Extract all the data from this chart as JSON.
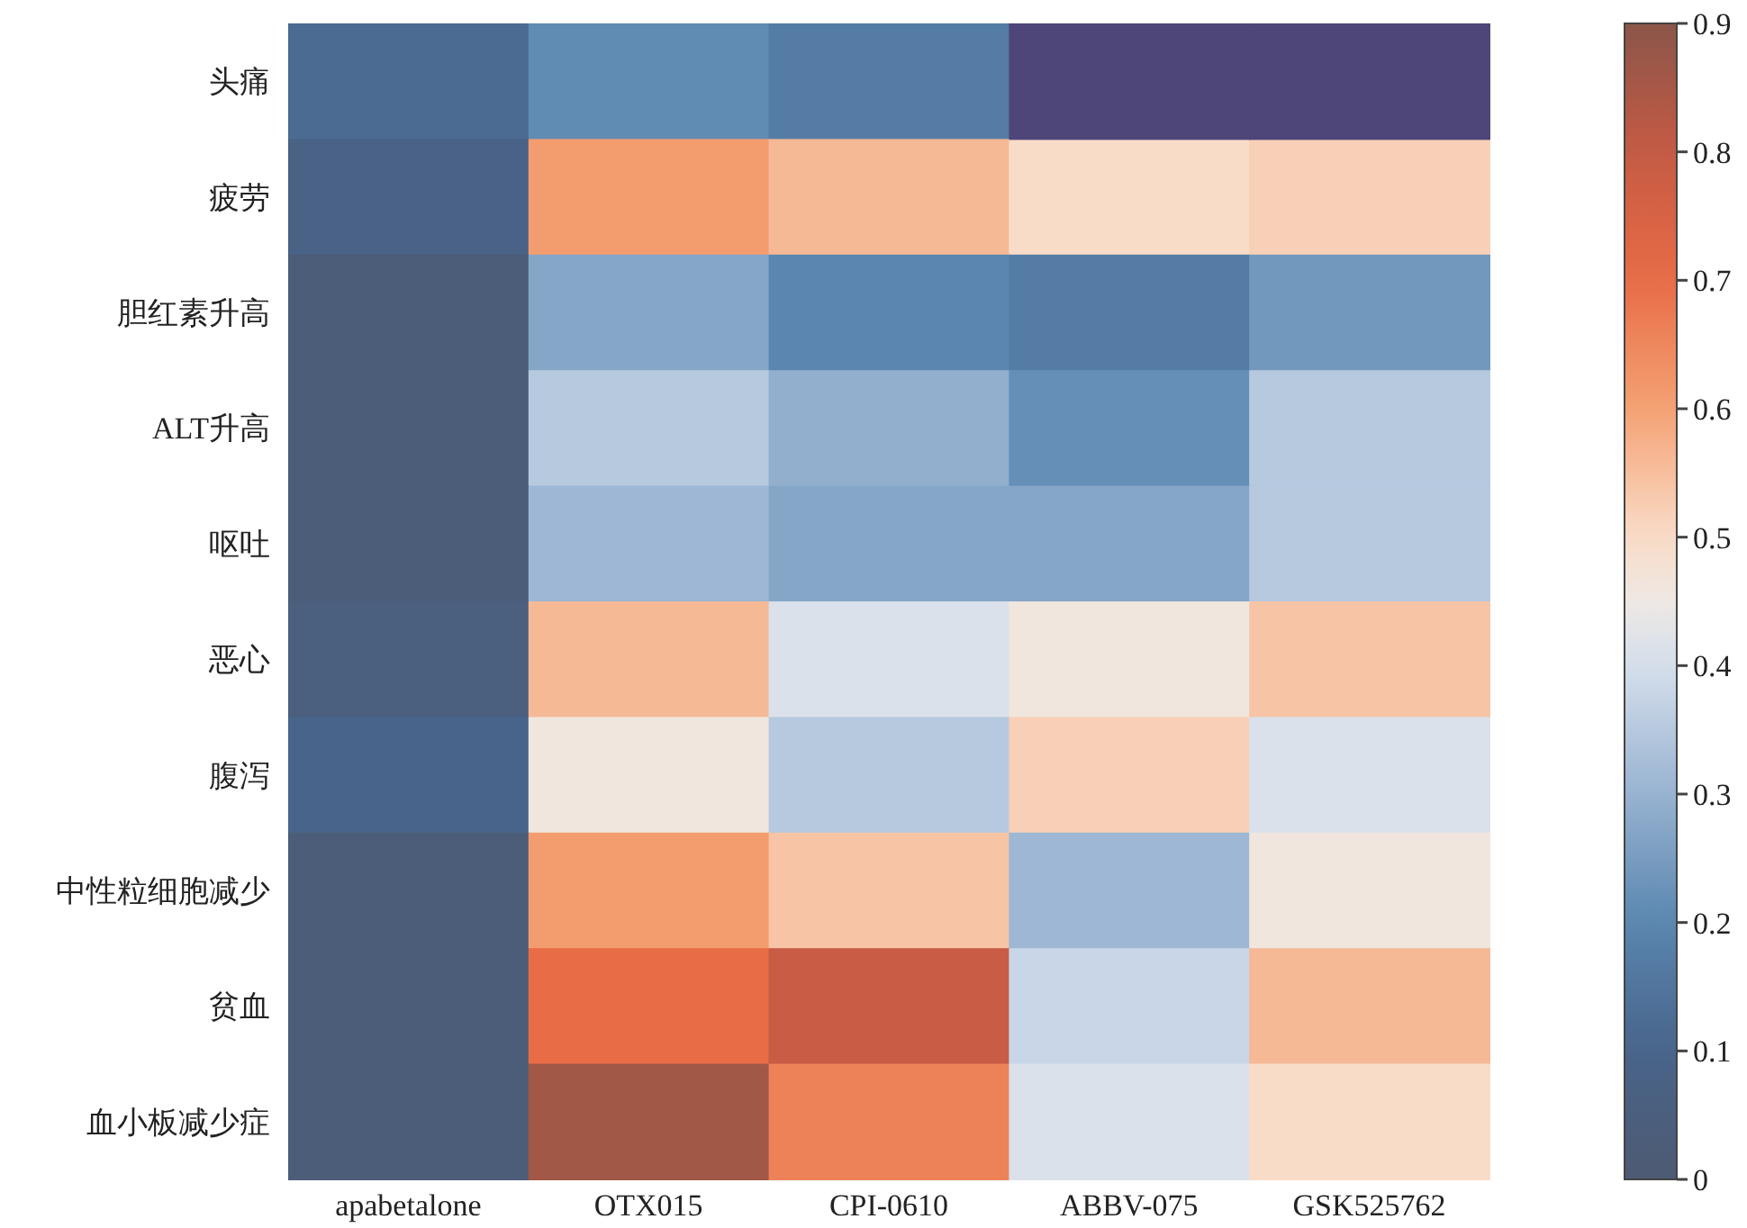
{
  "chart_data": {
    "type": "heatmap",
    "categories": [
      "apabetalone",
      "OTX015",
      "CPI-0610",
      "ABBV-075",
      "GSK525762"
    ],
    "y_categories": [
      "头痛",
      "疲劳",
      "胆红素升高",
      "ALT升高",
      "呕吐",
      "恶心",
      "腹泻",
      "中性粒细胞减少",
      "贫血",
      "血小板减少症"
    ],
    "cells": [
      [
        0.12,
        0.21,
        0.17,
        null,
        null
      ],
      [
        0.08,
        0.61,
        0.56,
        0.5,
        0.52
      ],
      [
        0.03,
        0.27,
        0.2,
        0.17,
        0.24
      ],
      [
        0.03,
        0.35,
        0.29,
        0.22,
        0.35
      ],
      [
        0.03,
        0.31,
        0.27,
        0.27,
        0.35
      ],
      [
        0.05,
        0.56,
        0.41,
        0.46,
        0.54
      ],
      [
        0.1,
        0.46,
        0.35,
        0.52,
        0.41
      ],
      [
        0.03,
        0.61,
        0.54,
        0.31,
        0.46
      ],
      [
        0.03,
        0.7,
        0.79,
        0.38,
        0.56
      ],
      [
        0.03,
        0.86,
        0.66,
        0.41,
        0.5
      ]
    ],
    "clim": [
      0,
      0.9
    ],
    "cticks": [
      0,
      0.1,
      0.2,
      0.3,
      0.4,
      0.5,
      0.6,
      0.7,
      0.8,
      0.9
    ]
  }
}
